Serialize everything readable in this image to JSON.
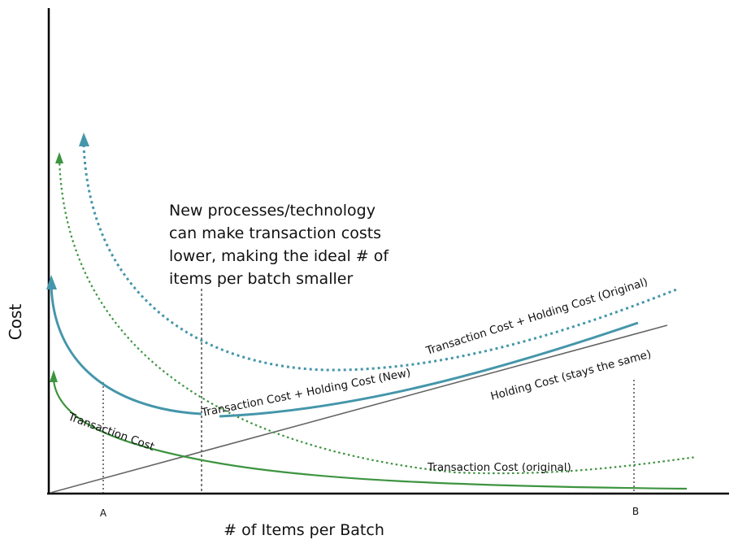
{
  "chart_data": {
    "type": "line",
    "title": "",
    "xlabel": "# of Items per Batch",
    "ylabel": "Cost",
    "x_ticks": [
      "A",
      "B"
    ],
    "annotation": "New processes/technology can make transaction costs lower, making the ideal # of items per batch smaller",
    "annotation_lines": [
      "New processes/technology",
      "can make transaction costs",
      "lower, making the ideal # of",
      "items per batch smaller"
    ],
    "series": [
      {
        "name": "Holding Cost (stays the same)",
        "style": "solid",
        "color": "#666666"
      },
      {
        "name": "Transaction Cost",
        "style": "solid",
        "color": "#3d9440"
      },
      {
        "name": "Transaction Cost (original)",
        "style": "dotted",
        "color": "#3d9440"
      },
      {
        "name": "Transaction Cost + Holding Cost (New)",
        "style": "solid",
        "color": "#4596aa"
      },
      {
        "name": "Transaction Cost + Holding Cost (Original)",
        "style": "dotted",
        "color": "#4596aa"
      }
    ]
  }
}
